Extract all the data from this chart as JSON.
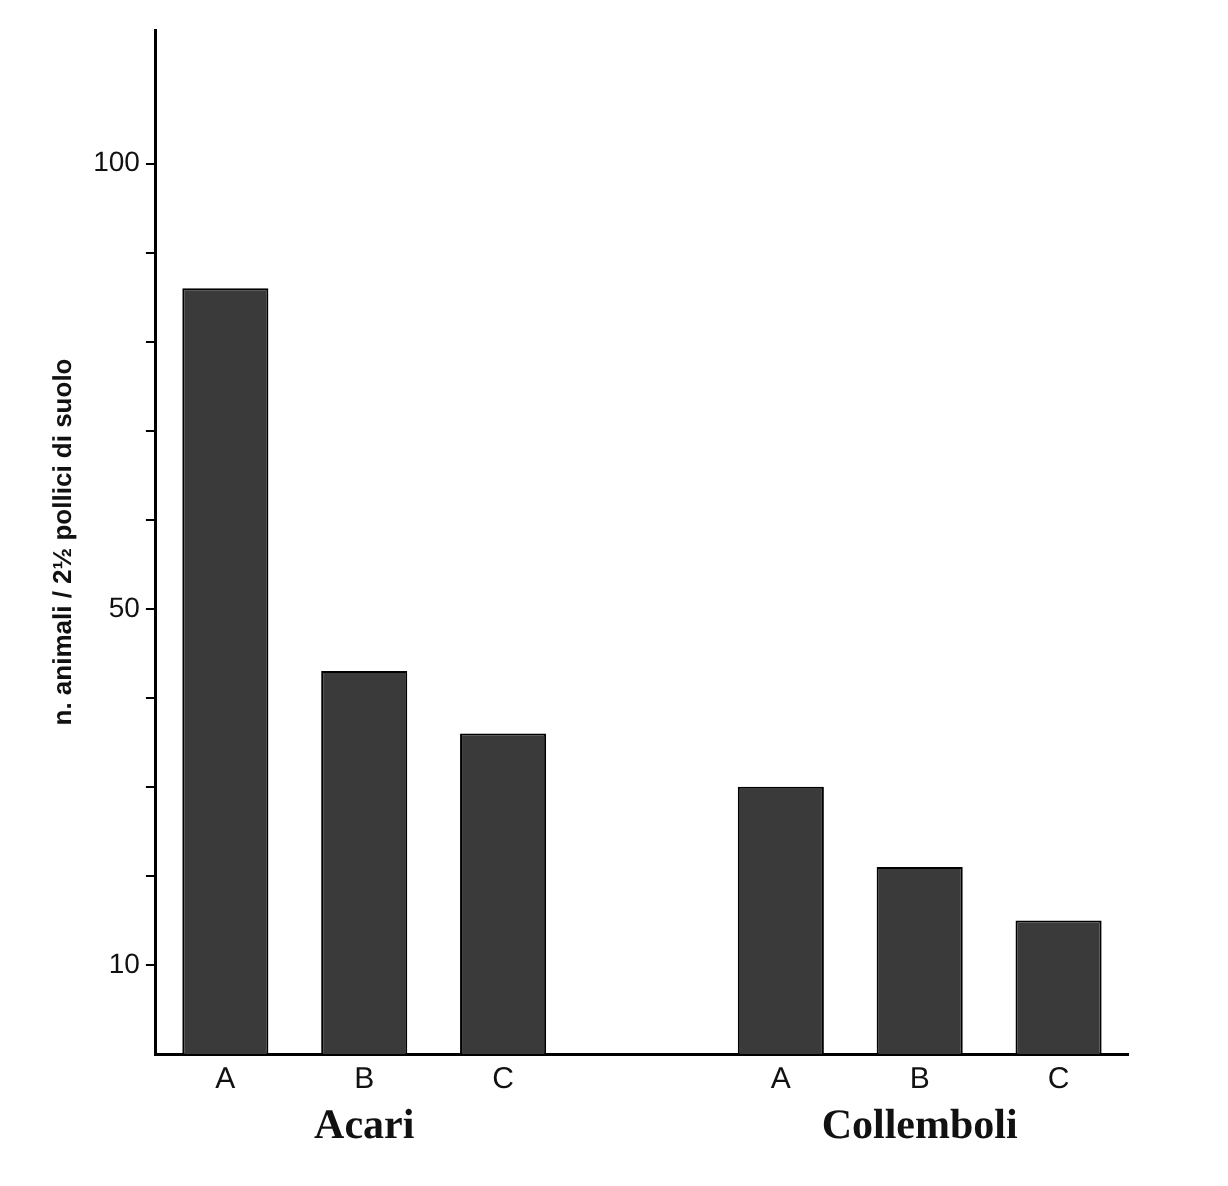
{
  "chart_data": {
    "type": "bar",
    "categories": [
      "A",
      "B",
      "C",
      null,
      "A",
      "B",
      "C"
    ],
    "values": [
      86,
      43,
      36,
      null,
      30,
      21,
      15
    ],
    "color": "#3a3a3a",
    "ylabel": "n. animali / 2½ pollici di suolo",
    "ylim": [
      0,
      115
    ],
    "yticks": [
      {
        "value": 10,
        "label": "10"
      },
      {
        "value": 20,
        "label": null
      },
      {
        "value": 30,
        "label": null
      },
      {
        "value": 40,
        "label": null
      },
      {
        "value": 50,
        "label": "50"
      },
      {
        "value": 60,
        "label": null
      },
      {
        "value": 70,
        "label": null
      },
      {
        "value": 80,
        "label": null
      },
      {
        "value": 90,
        "label": null
      },
      {
        "value": 100,
        "label": "100"
      }
    ],
    "annotations": [
      "Acari",
      "Collemboli"
    ],
    "grid": false,
    "legend": false
  }
}
